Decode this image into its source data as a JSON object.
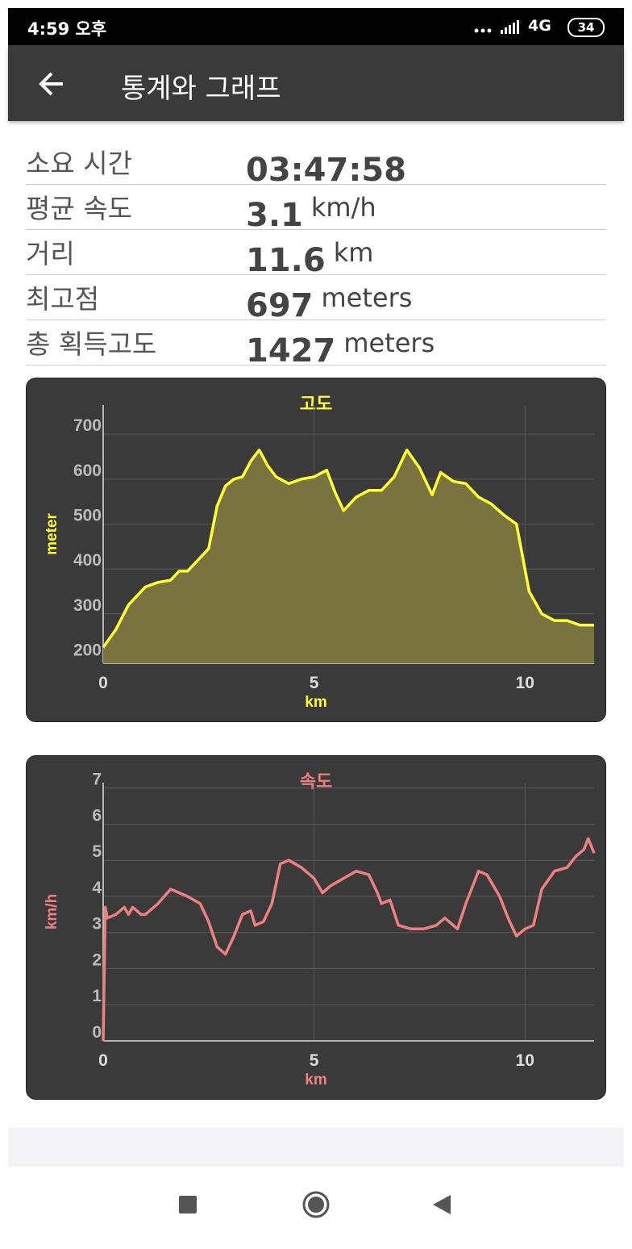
{
  "status_bar": {
    "time": "4:59 오후",
    "network": "4G",
    "battery": "34"
  },
  "app_bar": {
    "title": "통계와 그래프"
  },
  "stats": [
    {
      "label": "소요 시간",
      "value": "03:47:58"
    },
    {
      "label": "평균 속도",
      "value": 3.1,
      "unit": "km/h"
    },
    {
      "label": "거리",
      "value": 11.6,
      "unit": "km"
    },
    {
      "label": "최고점",
      "value": 697,
      "unit": "meters"
    },
    {
      "label": "총 획득고도",
      "value": 1427,
      "unit": "meters"
    }
  ],
  "chart_data": [
    {
      "type": "area",
      "title": "고도",
      "x_label": "km",
      "y_label": "meter",
      "color": "#ffff33",
      "fill": "#78733f",
      "xlim": [
        0,
        11.64
      ],
      "xticks": [
        0,
        5,
        10
      ],
      "ylim": [
        190,
        765
      ],
      "yticks": [
        200,
        300,
        400,
        500,
        600,
        700
      ],
      "grid": true,
      "x": [
        0,
        0.3,
        0.6,
        0.8,
        1.0,
        1.3,
        1.6,
        1.8,
        2.0,
        2.3,
        2.5,
        2.7,
        2.9,
        3.1,
        3.3,
        3.5,
        3.7,
        3.9,
        4.1,
        4.4,
        4.7,
        5.0,
        5.3,
        5.5,
        5.7,
        6.0,
        6.3,
        6.6,
        6.9,
        7.2,
        7.5,
        7.8,
        8.0,
        8.3,
        8.6,
        8.9,
        9.2,
        9.5,
        9.8,
        10.1,
        10.4,
        10.7,
        11.0,
        11.3,
        11.64
      ],
      "values": [
        225,
        265,
        320,
        340,
        360,
        370,
        375,
        395,
        395,
        425,
        445,
        540,
        585,
        600,
        605,
        640,
        665,
        630,
        605,
        590,
        600,
        605,
        620,
        570,
        530,
        560,
        575,
        575,
        605,
        665,
        625,
        565,
        615,
        595,
        590,
        560,
        545,
        520,
        500,
        350,
        300,
        285,
        285,
        275,
        275
      ]
    },
    {
      "type": "line",
      "title": "속도",
      "x_label": "km",
      "y_label": "km/h",
      "color": "#f08080",
      "xlim": [
        0,
        11.64
      ],
      "xticks": [
        0,
        5,
        10
      ],
      "ylim": [
        0,
        7.15
      ],
      "yticks": [
        0,
        1,
        2,
        3,
        4,
        5,
        6,
        7
      ],
      "grid": true,
      "x": [
        0,
        0.05,
        0.1,
        0.3,
        0.5,
        0.6,
        0.7,
        0.9,
        1.0,
        1.3,
        1.6,
        1.8,
        2.0,
        2.3,
        2.5,
        2.7,
        2.9,
        3.1,
        3.3,
        3.5,
        3.6,
        3.8,
        4.0,
        4.2,
        4.4,
        4.7,
        5.0,
        5.2,
        5.4,
        5.7,
        6.0,
        6.3,
        6.5,
        6.6,
        6.8,
        7.0,
        7.3,
        7.6,
        7.9,
        8.1,
        8.4,
        8.6,
        8.9,
        9.1,
        9.4,
        9.6,
        9.8,
        10.0,
        10.2,
        10.4,
        10.7,
        11.0,
        11.2,
        11.4,
        11.5,
        11.64
      ],
      "values": [
        0,
        3.7,
        3.4,
        3.5,
        3.7,
        3.5,
        3.7,
        3.5,
        3.5,
        3.8,
        4.2,
        4.1,
        4.0,
        3.8,
        3.3,
        2.6,
        2.4,
        2.9,
        3.5,
        3.6,
        3.2,
        3.3,
        3.8,
        4.9,
        5.0,
        4.8,
        4.5,
        4.1,
        4.3,
        4.5,
        4.7,
        4.6,
        4.1,
        3.8,
        3.9,
        3.2,
        3.1,
        3.1,
        3.2,
        3.4,
        3.1,
        3.8,
        4.7,
        4.6,
        4.0,
        3.4,
        2.9,
        3.1,
        3.2,
        4.2,
        4.7,
        4.8,
        5.1,
        5.3,
        5.6,
        5.2
      ]
    }
  ]
}
